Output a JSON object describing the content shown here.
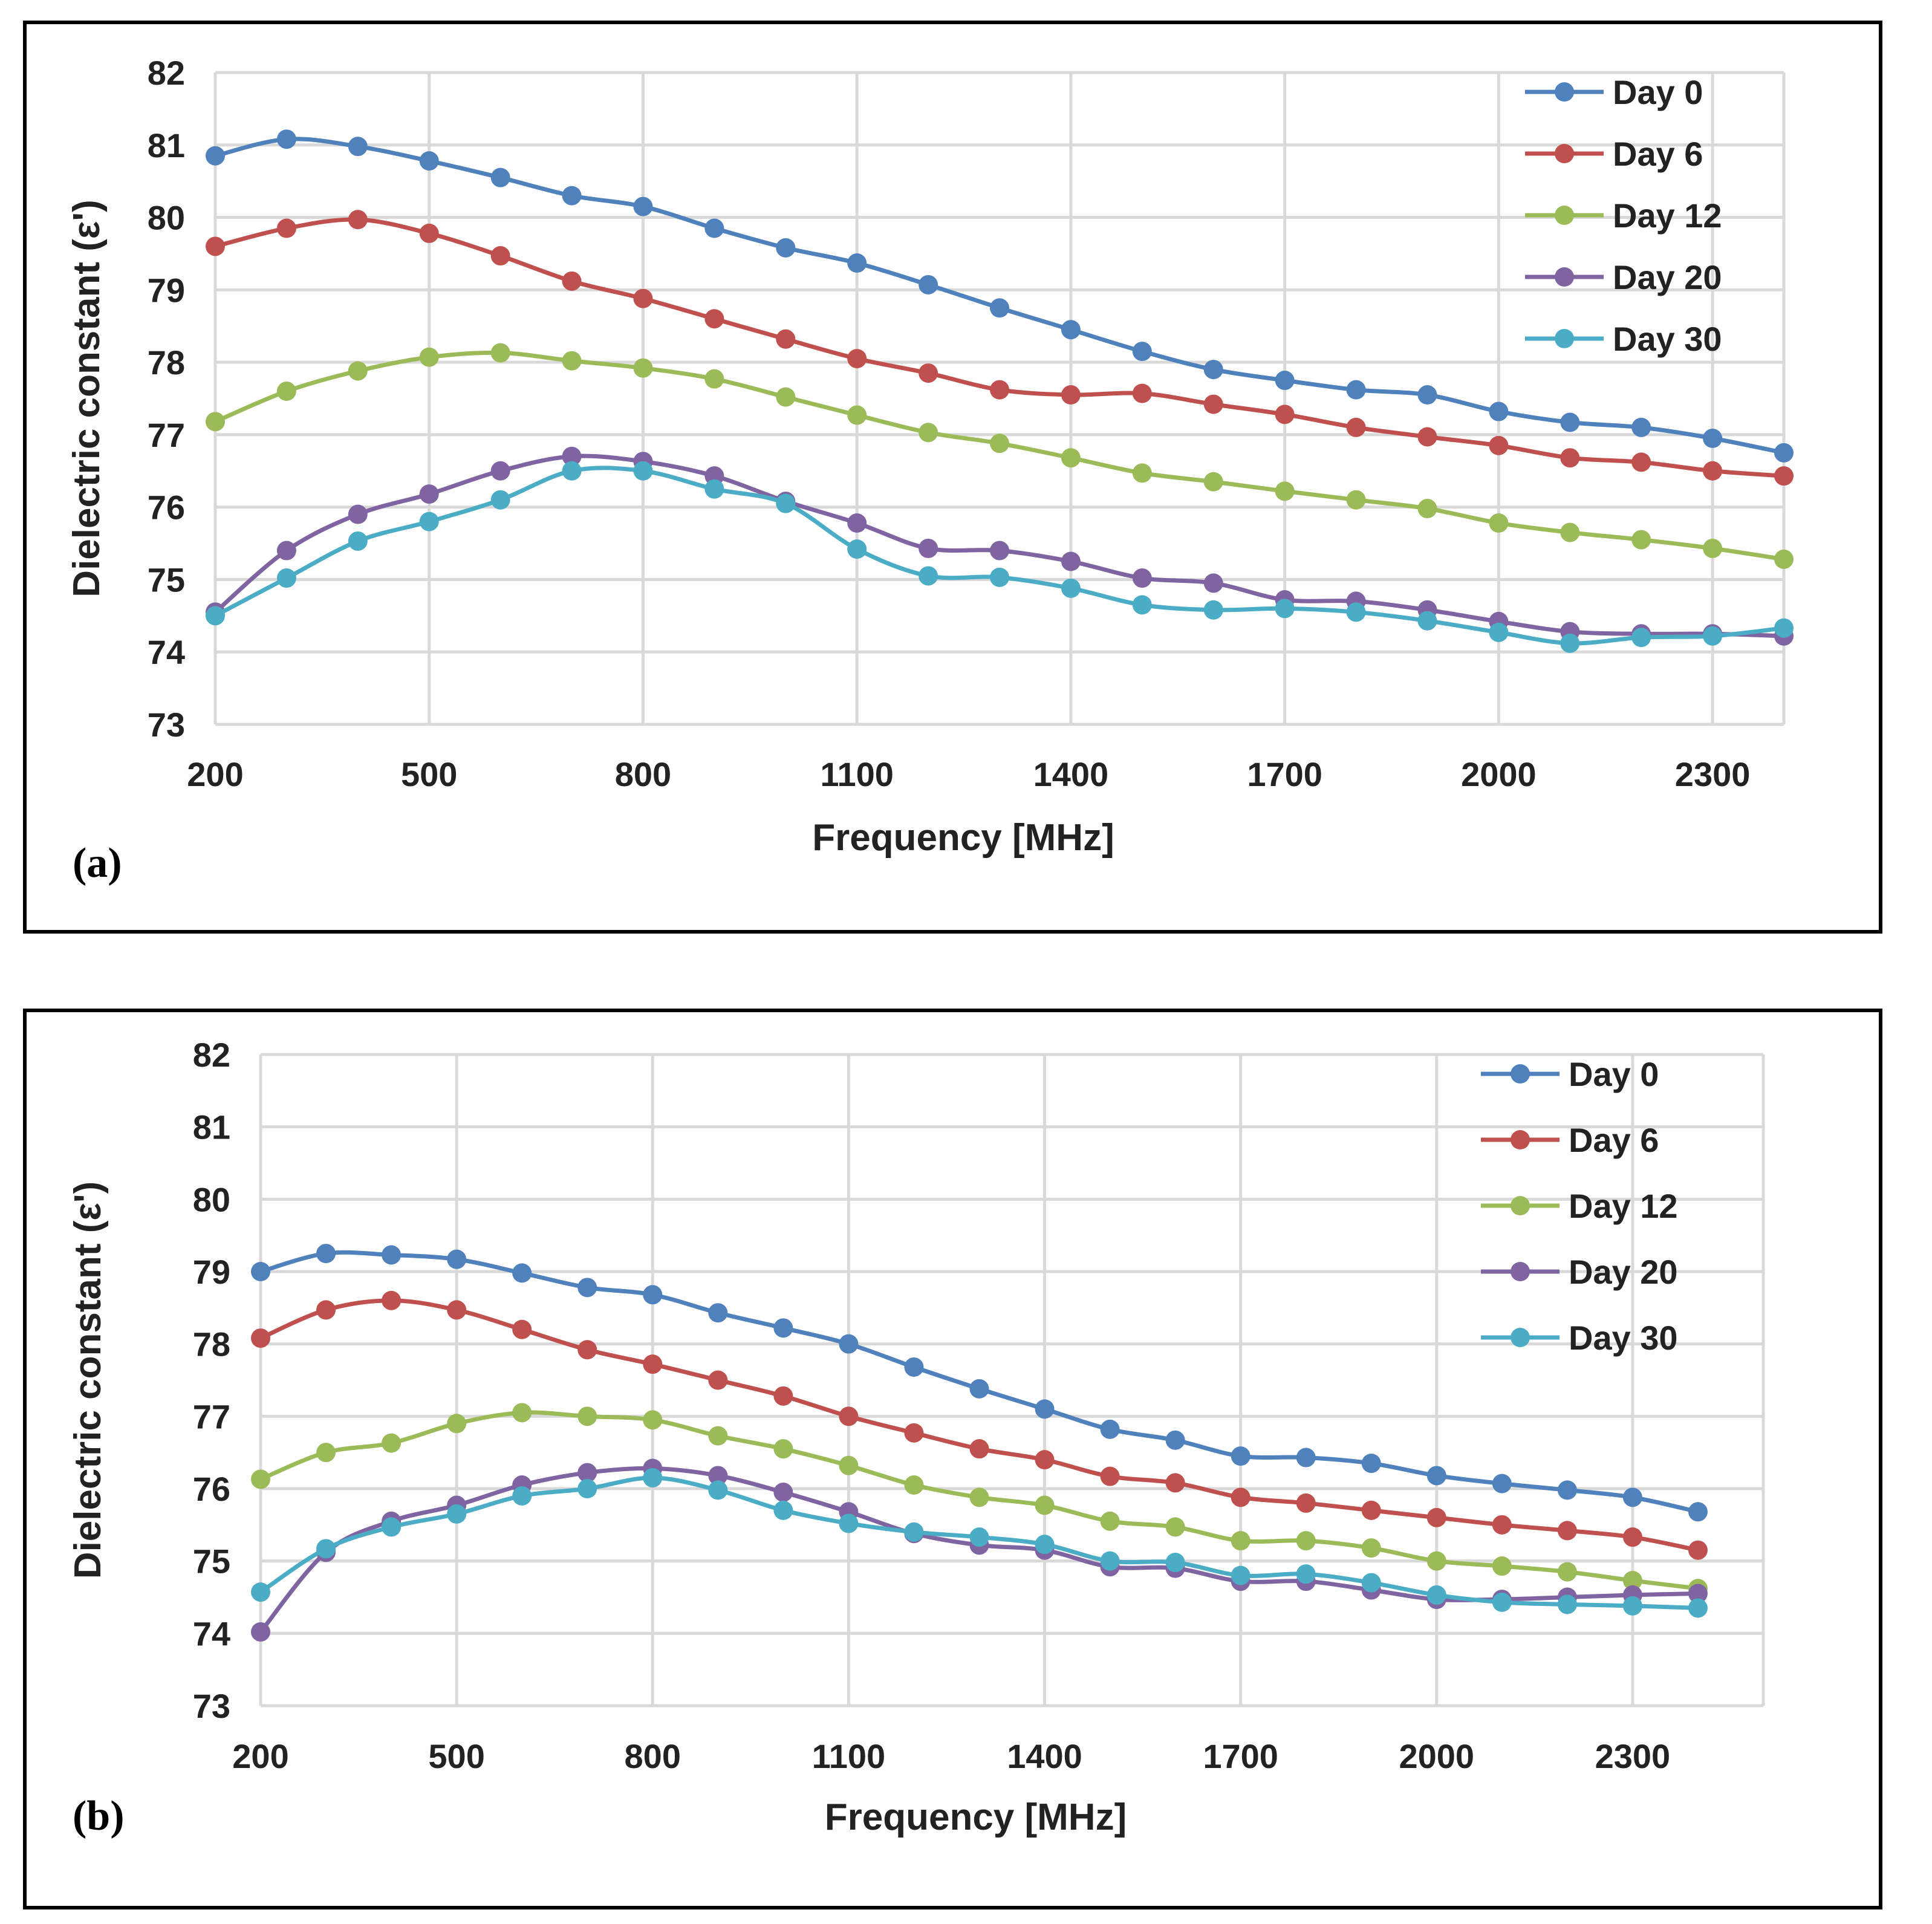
{
  "chart_data": [
    {
      "type": "line",
      "panel_label": "(a)",
      "xlabel": "Frequency  [MHz]",
      "ylabel": "Dielectric  constant (ε')",
      "xlim": [
        200,
        2400
      ],
      "ylim": [
        73,
        82
      ],
      "xticks": [
        200,
        500,
        800,
        1100,
        1400,
        1700,
        2000,
        2300
      ],
      "yticks": [
        73,
        74,
        75,
        76,
        77,
        78,
        79,
        80,
        81,
        82
      ],
      "grid": true,
      "legend_position": "top-right",
      "x": [
        200,
        300,
        400,
        500,
        600,
        700,
        800,
        900,
        1000,
        1100,
        1200,
        1300,
        1400,
        1500,
        1600,
        1700,
        1800,
        1900,
        2000,
        2100,
        2200,
        2300,
        2400
      ],
      "series": [
        {
          "name": "Day 0",
          "color": "#4f81bd",
          "values": [
            80.85,
            81.08,
            80.98,
            80.78,
            80.55,
            80.3,
            80.15,
            79.85,
            79.58,
            79.37,
            79.07,
            78.75,
            78.45,
            78.15,
            77.9,
            77.75,
            77.62,
            77.55,
            77.32,
            77.17,
            77.1,
            76.95,
            76.75
          ]
        },
        {
          "name": "Day 6",
          "color": "#c0504d",
          "values": [
            79.6,
            79.85,
            79.97,
            79.78,
            79.47,
            79.12,
            78.88,
            78.6,
            78.32,
            78.05,
            77.85,
            77.62,
            77.55,
            77.57,
            77.42,
            77.28,
            77.1,
            76.97,
            76.85,
            76.68,
            76.62,
            76.5,
            76.43
          ]
        },
        {
          "name": "Day 12",
          "color": "#9bbb59",
          "values": [
            77.18,
            77.6,
            77.88,
            78.07,
            78.13,
            78.02,
            77.92,
            77.77,
            77.52,
            77.27,
            77.03,
            76.88,
            76.68,
            76.47,
            76.35,
            76.22,
            76.1,
            75.98,
            75.78,
            75.65,
            75.55,
            75.43,
            75.28
          ]
        },
        {
          "name": "Day 20",
          "color": "#8064a2",
          "values": [
            74.55,
            75.4,
            75.9,
            76.18,
            76.5,
            76.7,
            76.63,
            76.43,
            76.08,
            75.78,
            75.43,
            75.4,
            75.25,
            75.02,
            74.95,
            74.72,
            74.7,
            74.58,
            74.42,
            74.28,
            74.25,
            74.25,
            74.22
          ]
        },
        {
          "name": "Day 30",
          "color": "#4bacc6",
          "values": [
            74.5,
            75.02,
            75.53,
            75.8,
            76.1,
            76.5,
            76.5,
            76.25,
            76.05,
            75.42,
            75.05,
            75.03,
            74.88,
            74.65,
            74.58,
            74.6,
            74.55,
            74.43,
            74.27,
            74.12,
            74.2,
            74.22,
            74.33
          ]
        }
      ]
    },
    {
      "type": "line",
      "panel_label": "(b)",
      "xlabel": "Frequency  [MHz]",
      "ylabel": "Dielectric  constant (ε')",
      "xlim": [
        200,
        2500
      ],
      "ylim": [
        73,
        82
      ],
      "xticks": [
        200,
        500,
        800,
        1100,
        1400,
        1700,
        2000,
        2300
      ],
      "yticks": [
        73,
        74,
        75,
        76,
        77,
        78,
        79,
        80,
        81,
        82
      ],
      "grid": true,
      "legend_position": "top-right",
      "x": [
        200,
        300,
        400,
        500,
        600,
        700,
        800,
        900,
        1000,
        1100,
        1200,
        1300,
        1400,
        1500,
        1600,
        1700,
        1800,
        1900,
        2000,
        2100,
        2200,
        2300,
        2400
      ],
      "series": [
        {
          "name": "Day 0",
          "color": "#4f81bd",
          "values": [
            79.0,
            79.25,
            79.23,
            79.17,
            78.98,
            78.78,
            78.68,
            78.43,
            78.22,
            78.0,
            77.68,
            77.38,
            77.1,
            76.82,
            76.67,
            76.45,
            76.43,
            76.35,
            76.18,
            76.07,
            75.98,
            75.88,
            75.68
          ]
        },
        {
          "name": "Day 6",
          "color": "#c0504d",
          "values": [
            78.08,
            78.47,
            78.6,
            78.47,
            78.2,
            77.92,
            77.72,
            77.5,
            77.28,
            77.0,
            76.77,
            76.55,
            76.4,
            76.17,
            76.08,
            75.88,
            75.8,
            75.7,
            75.6,
            75.5,
            75.42,
            75.33,
            75.15
          ]
        },
        {
          "name": "Day 12",
          "color": "#9bbb59",
          "values": [
            76.13,
            76.5,
            76.63,
            76.9,
            77.05,
            77.0,
            76.95,
            76.73,
            76.55,
            76.32,
            76.05,
            75.88,
            75.77,
            75.55,
            75.47,
            75.28,
            75.28,
            75.18,
            75.0,
            74.93,
            74.85,
            74.73,
            74.62
          ]
        },
        {
          "name": "Day 20",
          "color": "#8064a2",
          "values": [
            74.02,
            75.12,
            75.55,
            75.77,
            76.05,
            76.22,
            76.28,
            76.18,
            75.95,
            75.68,
            75.38,
            75.22,
            75.15,
            74.92,
            74.9,
            74.72,
            74.72,
            74.6,
            74.47,
            74.47,
            74.5,
            74.53,
            74.55
          ]
        },
        {
          "name": "Day 30",
          "color": "#4bacc6",
          "values": [
            74.57,
            75.17,
            75.47,
            75.65,
            75.9,
            76.0,
            76.15,
            75.98,
            75.7,
            75.52,
            75.4,
            75.33,
            75.23,
            75.0,
            74.98,
            74.8,
            74.82,
            74.7,
            74.53,
            74.43,
            74.4,
            74.38,
            74.35
          ]
        }
      ]
    }
  ]
}
